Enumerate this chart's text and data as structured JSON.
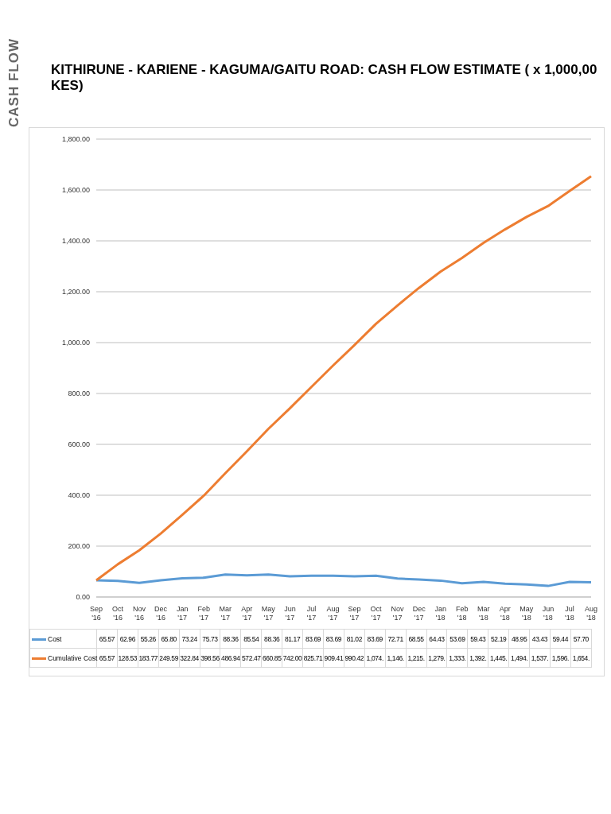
{
  "chart_data": {
    "type": "line",
    "title": "KITHIRUNE - KARIENE - KAGUMA/GAITU ROAD: CASH FLOW ESTIMATE ( x 1,000,00 KES)",
    "annotations": [
      "CASH FLOW"
    ],
    "categories": [
      "Sep '16",
      "Oct '16",
      "Nov '16",
      "Dec '16",
      "Jan '17",
      "Feb '17",
      "Mar '17",
      "Apr '17",
      "May '17",
      "Jun '17",
      "Jul '17",
      "Aug '17",
      "Sep '17",
      "Oct '17",
      "Nov '17",
      "Dec '17",
      "Jan '18",
      "Feb '18",
      "Mar '18",
      "Apr '18",
      "May '18",
      "Jun '18",
      "Jul '18",
      "Aug '18"
    ],
    "series": [
      {
        "name": "Cost",
        "color": "#5b9bd5",
        "values": [
          65.57,
          62.96,
          55.26,
          65.8,
          73.24,
          75.73,
          88.36,
          85.54,
          88.36,
          81.17,
          83.69,
          83.69,
          81.02,
          83.69,
          72.71,
          68.55,
          64.43,
          53.69,
          59.43,
          52.19,
          48.95,
          43.43,
          59.44,
          57.7
        ],
        "value_labels": [
          "65.57",
          "62.96",
          "55.26",
          "65.80",
          "73.24",
          "75.73",
          "88.36",
          "85.54",
          "88.36",
          "81.17",
          "83.69",
          "83.69",
          "81.02",
          "83.69",
          "72.71",
          "68.55",
          "64.43",
          "53.69",
          "59.43",
          "52.19",
          "48.95",
          "43.43",
          "59.44",
          "57.70"
        ]
      },
      {
        "name": "Cumulative Cost",
        "color": "#ed7d31",
        "values": [
          65.57,
          128.53,
          183.77,
          249.59,
          322.84,
          398.56,
          486.94,
          572.47,
          660.85,
          742.0,
          825.71,
          909.41,
          990.42,
          1074,
          1146,
          1215,
          1279,
          1333,
          1392,
          1445,
          1494,
          1537,
          1596,
          1654
        ],
        "value_labels": [
          "65.57",
          "128.53",
          "183.77",
          "249.59",
          "322.84",
          "398.56",
          "486.94",
          "572.47",
          "660.85",
          "742.00",
          "825.71",
          "909.41",
          "990.42",
          "1,074.",
          "1,146.",
          "1,215.",
          "1,279.",
          "1,333.",
          "1,392.",
          "1,445.",
          "1,494.",
          "1,537.",
          "1,596.",
          "1,654."
        ]
      }
    ],
    "ylim": [
      0,
      1800
    ],
    "yticks": [
      {
        "value": 0,
        "label": "0.00"
      },
      {
        "value": 200,
        "label": "200.00"
      },
      {
        "value": 400,
        "label": "400.00"
      },
      {
        "value": 600,
        "label": "600.00"
      },
      {
        "value": 800,
        "label": "800.00"
      },
      {
        "value": 1000,
        "label": "1,000.00"
      },
      {
        "value": 1200,
        "label": "1,200.00"
      },
      {
        "value": 1400,
        "label": "1,400.00"
      },
      {
        "value": 1600,
        "label": "1,600.00"
      },
      {
        "value": 1800,
        "label": "1,800.00"
      }
    ],
    "grid": "y",
    "legend": "bottom",
    "marker": "none",
    "line_style": "solid"
  }
}
